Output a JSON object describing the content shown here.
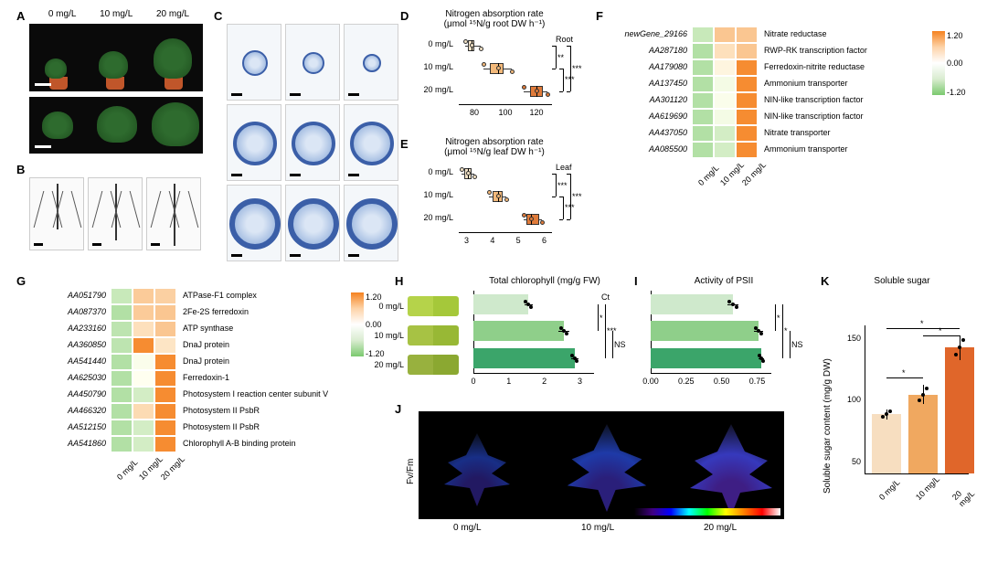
{
  "conditions": [
    "0 mg/L",
    "10 mg/L",
    "20 mg/L"
  ],
  "panelA": {
    "label": "A"
  },
  "panelB": {
    "label": "B"
  },
  "panelC": {
    "label": "C"
  },
  "panelD": {
    "label": "D",
    "title": "Nitrogen absorption rate",
    "subtitle": "(μmol ¹⁵N/g root DW h⁻¹)",
    "tissue": "Root",
    "xticks": [
      "80",
      "100",
      "120"
    ],
    "xmin": 70,
    "xmax": 130,
    "categories": [
      "0 mg/L",
      "10 mg/L",
      "20 mg/L"
    ],
    "boxes": [
      {
        "q1": 76,
        "med": 78,
        "q3": 80,
        "whisk_lo": 74,
        "whisk_hi": 84,
        "color": "#f2e2c6"
      },
      {
        "q1": 90,
        "med": 95,
        "q3": 99,
        "whisk_lo": 86,
        "whisk_hi": 104,
        "color": "#f3b97a"
      },
      {
        "q1": 116,
        "med": 120,
        "q3": 124,
        "whisk_lo": 112,
        "whisk_hi": 127,
        "color": "#e07b3a"
      }
    ],
    "sig": [
      {
        "a": 0,
        "b": 1,
        "text": "**"
      },
      {
        "a": 1,
        "b": 2,
        "text": "***"
      },
      {
        "a": 0,
        "b": 2,
        "text": "***"
      }
    ]
  },
  "panelE": {
    "label": "E",
    "title": "Nitrogen absorption rate",
    "subtitle": "(μmol ¹⁵N/g leaf DW h⁻¹)",
    "tissue": "Leaf",
    "xticks": [
      "3",
      "4",
      "5",
      "6"
    ],
    "xmin": 2.7,
    "xmax": 6.3,
    "categories": [
      "0 mg/L",
      "10 mg/L",
      "20 mg/L"
    ],
    "boxes": [
      {
        "q1": 2.9,
        "med": 3.05,
        "q3": 3.2,
        "whisk_lo": 2.8,
        "whisk_hi": 3.3,
        "color": "#f2e2c6"
      },
      {
        "q1": 4.0,
        "med": 4.2,
        "q3": 4.4,
        "whisk_lo": 3.85,
        "whisk_hi": 4.55,
        "color": "#f3b97a"
      },
      {
        "q1": 5.3,
        "med": 5.5,
        "q3": 5.8,
        "whisk_lo": 5.2,
        "whisk_hi": 5.9,
        "color": "#e07b3a"
      }
    ],
    "sig": [
      {
        "a": 0,
        "b": 1,
        "text": "***"
      },
      {
        "a": 1,
        "b": 2,
        "text": "***"
      },
      {
        "a": 0,
        "b": 2,
        "text": "***"
      }
    ]
  },
  "panelF": {
    "label": "F",
    "cols": [
      "0 mg/L",
      "10 mg/L",
      "20 mg/L"
    ],
    "colorbar": {
      "min": -1.2,
      "zero": 0.0,
      "max": 1.2
    },
    "rows": [
      {
        "id": "newGene_29166",
        "desc": "Nitrate reductase",
        "vals": [
          -0.5,
          0.55,
          0.55
        ]
      },
      {
        "id": "AA287180",
        "desc": "RWP-RK transcription factor",
        "vals": [
          -0.7,
          0.3,
          0.55
        ]
      },
      {
        "id": "AA179080",
        "desc": "Ferredoxin-nitrite reductase",
        "vals": [
          -0.7,
          0.1,
          1.1
        ]
      },
      {
        "id": "AA137450",
        "desc": "Ammonium transporter",
        "vals": [
          -0.7,
          -0.1,
          1.1
        ]
      },
      {
        "id": "AA301120",
        "desc": "NIN-like transcription factor",
        "vals": [
          -0.7,
          -0.05,
          1.1
        ]
      },
      {
        "id": "AA619690",
        "desc": "NIN-like transcription factor",
        "vals": [
          -0.7,
          -0.1,
          1.1
        ]
      },
      {
        "id": "AA437050",
        "desc": "Nitrate transporter",
        "vals": [
          -0.7,
          -0.4,
          1.1
        ]
      },
      {
        "id": "AA085500",
        "desc": "Ammonium transporter",
        "vals": [
          -0.7,
          -0.4,
          1.1
        ]
      }
    ]
  },
  "panelG": {
    "label": "G",
    "cols": [
      "0 mg/L",
      "10 mg/L",
      "20 mg/L"
    ],
    "colorbar": {
      "min": -1.2,
      "zero": 0.0,
      "max": 1.2
    },
    "rows": [
      {
        "id": "AA051790",
        "desc": "ATPase-F1 complex",
        "vals": [
          -0.5,
          0.5,
          0.45
        ]
      },
      {
        "id": "AA087370",
        "desc": "2Fe-2S ferredoxin",
        "vals": [
          -0.7,
          0.5,
          0.55
        ]
      },
      {
        "id": "AA233160",
        "desc": "ATP synthase",
        "vals": [
          -0.6,
          0.3,
          0.55
        ]
      },
      {
        "id": "AA360850",
        "desc": "DnaJ protein",
        "vals": [
          -0.6,
          1.1,
          0.25
        ]
      },
      {
        "id": "AA541440",
        "desc": "DnaJ protein",
        "vals": [
          -0.7,
          -0.05,
          1.1
        ]
      },
      {
        "id": "AA625030",
        "desc": "Ferredoxin-1",
        "vals": [
          -0.7,
          0.0,
          1.1
        ]
      },
      {
        "id": "AA450790",
        "desc": "Photosystem I reaction center subunit V",
        "vals": [
          -0.7,
          -0.4,
          1.1
        ]
      },
      {
        "id": "AA466320",
        "desc": "Photosystem II PsbR",
        "vals": [
          -0.7,
          0.35,
          1.1
        ]
      },
      {
        "id": "AA512150",
        "desc": "Photosystem II PsbR",
        "vals": [
          -0.7,
          -0.4,
          1.1
        ]
      },
      {
        "id": "AA541860",
        "desc": "Chlorophyll A-B binding protein",
        "vals": [
          -0.7,
          -0.4,
          1.1
        ]
      }
    ]
  },
  "panelH": {
    "label": "H",
    "title": "Total chlorophyll (mg/g FW)",
    "badge": "Ct",
    "xticks": [
      "0",
      "1",
      "2",
      "3"
    ],
    "xmin": 0,
    "xmax": 3.4,
    "categories": [
      "0 mg/L",
      "10 mg/L",
      "20 mg/L"
    ],
    "bars": [
      {
        "val": 1.55,
        "err": 0.12,
        "color": "#cfe9cc"
      },
      {
        "val": 2.55,
        "err": 0.15,
        "color": "#8fcf8a"
      },
      {
        "val": 2.85,
        "err": 0.1,
        "color": "#3ba56a"
      }
    ],
    "sig": [
      {
        "a": 0,
        "b": 1,
        "text": "*"
      },
      {
        "a": 0,
        "b": 2,
        "text": "***"
      },
      {
        "a": 1,
        "b": 2,
        "text": "NS"
      }
    ]
  },
  "panelI": {
    "label": "I",
    "title": "Activity of PSII",
    "xticks": [
      "0.00",
      "0.25",
      "0.50",
      "0.75"
    ],
    "xmin": 0,
    "xmax": 0.85,
    "categories": [
      "0 mg/L",
      "10 mg/L",
      "20 mg/L"
    ],
    "bars": [
      {
        "val": 0.58,
        "err": 0.04,
        "color": "#cfe9cc"
      },
      {
        "val": 0.76,
        "err": 0.03,
        "color": "#8fcf8a"
      },
      {
        "val": 0.78,
        "err": 0.02,
        "color": "#3ba56a"
      }
    ],
    "sig": [
      {
        "a": 0,
        "b": 1,
        "text": "*"
      },
      {
        "a": 0,
        "b": 2,
        "text": "*"
      },
      {
        "a": 1,
        "b": 2,
        "text": "NS"
      }
    ]
  },
  "panelJ": {
    "label": "J",
    "ylab": "Fv/Fm",
    "categories": [
      "0 mg/L",
      "10 mg/L",
      "20 mg/L"
    ]
  },
  "panelK": {
    "label": "K",
    "title": "Soluble sugar",
    "ylab": "Soluble sugar content (mg/g DW)",
    "yticks": [
      "50",
      "100",
      "150"
    ],
    "ymin": 40,
    "ymax": 160,
    "categories": [
      "0 mg/L",
      "10 mg/L",
      "20 mg/L"
    ],
    "bars": [
      {
        "val": 88,
        "err": 4,
        "color": "#f7dec0"
      },
      {
        "val": 104,
        "err": 8,
        "color": "#f0a860"
      },
      {
        "val": 142,
        "err": 10,
        "color": "#e0662a"
      }
    ],
    "sig": [
      {
        "a": 0,
        "b": 1,
        "text": "*"
      },
      {
        "a": 1,
        "b": 2,
        "text": "*"
      },
      {
        "a": 0,
        "b": 2,
        "text": "*"
      }
    ]
  }
}
